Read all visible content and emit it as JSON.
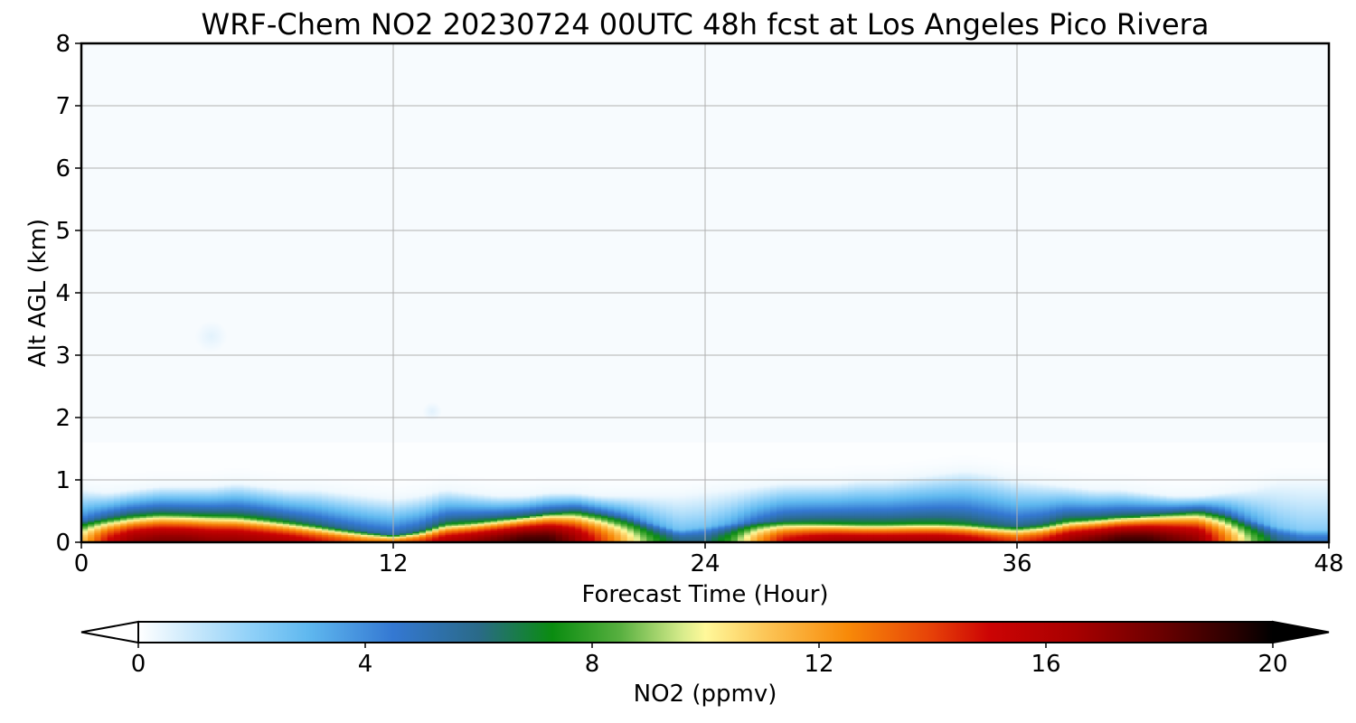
{
  "chart_data": {
    "type": "heatmap",
    "title": "WRF-Chem NO2  20230724 00UTC 48h fcst at Los Angeles Pico Rivera",
    "xlabel": "Forecast Time (Hour)",
    "ylabel": "Alt AGL (km)",
    "xlim": [
      0,
      48
    ],
    "ylim": [
      0,
      8
    ],
    "xticks": [
      "0",
      "12",
      "24",
      "36",
      "48"
    ],
    "yticks": [
      "0",
      "1",
      "2",
      "3",
      "4",
      "5",
      "6",
      "7",
      "8"
    ],
    "grid": true,
    "colorbar": {
      "label": "NO2  (ppmv)",
      "range": [
        0,
        20
      ],
      "ticks": [
        "0",
        "4",
        "8",
        "12",
        "16",
        "20"
      ],
      "extend": "both",
      "colors": [
        {
          "v": 0,
          "c": "#ffffff"
        },
        {
          "v": 2,
          "c": "#8fd0f8"
        },
        {
          "v": 3,
          "c": "#5fb8ef"
        },
        {
          "v": 4.5,
          "c": "#3478d2"
        },
        {
          "v": 6,
          "c": "#2a6a88"
        },
        {
          "v": 7.3,
          "c": "#0a8c10"
        },
        {
          "v": 8.5,
          "c": "#58b040"
        },
        {
          "v": 9.6,
          "c": "#d8ec8c"
        },
        {
          "v": 10,
          "c": "#fff89a"
        },
        {
          "v": 11,
          "c": "#fcc85a"
        },
        {
          "v": 12.5,
          "c": "#f88a08"
        },
        {
          "v": 14,
          "c": "#e64008"
        },
        {
          "v": 15,
          "c": "#cc0404"
        },
        {
          "v": 16.5,
          "c": "#a80000"
        },
        {
          "v": 18,
          "c": "#6c0000"
        },
        {
          "v": 19.3,
          "c": "#2a0000"
        },
        {
          "v": 20,
          "c": "#000000"
        }
      ]
    },
    "hours": [
      0,
      1,
      2,
      3,
      4,
      5,
      6,
      7,
      8,
      9,
      10,
      11,
      12,
      13,
      14,
      15,
      16,
      17,
      18,
      19,
      20,
      21,
      22,
      23,
      24,
      25,
      26,
      27,
      28,
      29,
      30,
      31,
      32,
      33,
      34,
      35,
      36,
      37,
      38,
      39,
      40,
      41,
      42,
      43,
      44,
      45,
      46,
      47,
      48
    ],
    "surface_no2_ppmv": [
      11,
      15,
      17,
      17.5,
      17.5,
      17,
      17,
      16.5,
      16,
      15,
      14,
      13,
      13,
      14,
      16,
      17,
      18,
      19,
      19,
      17,
      14,
      11,
      8,
      6,
      6,
      8,
      12,
      15,
      16,
      16.5,
      16.5,
      16.5,
      16.5,
      16.5,
      16,
      15,
      14,
      15,
      17,
      18,
      19,
      19,
      18,
      17,
      13,
      9,
      6,
      5,
      5
    ],
    "mixed_layer_top_km": [
      0.85,
      0.8,
      0.85,
      0.9,
      0.9,
      0.9,
      0.95,
      0.9,
      0.85,
      0.85,
      0.8,
      0.75,
      0.7,
      0.75,
      0.85,
      0.8,
      0.75,
      0.75,
      0.8,
      0.8,
      0.75,
      0.75,
      0.75,
      0.75,
      0.8,
      0.85,
      0.9,
      0.95,
      0.95,
      0.95,
      1.0,
      1.0,
      1.05,
      1.1,
      1.15,
      1.1,
      1.0,
      0.95,
      0.9,
      0.85,
      0.85,
      0.8,
      0.75,
      0.75,
      0.8,
      0.85,
      0.95,
      0.95,
      0.95
    ],
    "polluted_layer_top_km": [
      0.35,
      0.38,
      0.42,
      0.45,
      0.44,
      0.43,
      0.42,
      0.38,
      0.33,
      0.28,
      0.22,
      0.17,
      0.12,
      0.18,
      0.3,
      0.32,
      0.36,
      0.4,
      0.45,
      0.48,
      0.45,
      0.4,
      0.3,
      0.2,
      0.25,
      0.3,
      0.33,
      0.33,
      0.32,
      0.31,
      0.3,
      0.3,
      0.31,
      0.31,
      0.3,
      0.27,
      0.25,
      0.28,
      0.35,
      0.37,
      0.4,
      0.42,
      0.45,
      0.48,
      0.45,
      0.35,
      0.25,
      0.2,
      0.2
    ],
    "features": [
      {
        "x": 5,
        "y": 3.3,
        "radius_km": 0.25,
        "value": 0.6
      },
      {
        "x": 13.5,
        "y": 2.1,
        "radius_km": 0.15,
        "value": 0.3
      }
    ]
  }
}
